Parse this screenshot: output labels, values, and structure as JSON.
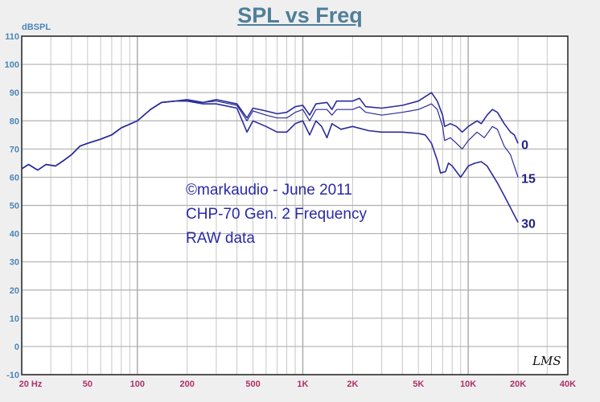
{
  "chart_data": {
    "type": "line",
    "title": "SPL vs Freq",
    "ylabel": "dBSPL",
    "xscale": "log",
    "xlim": [
      20,
      40000
    ],
    "ylim": [
      -10,
      110
    ],
    "grid": true,
    "yticks": [
      110,
      100,
      90,
      80,
      70,
      60,
      50,
      40,
      30,
      20,
      10,
      0,
      -10
    ],
    "xticks": [
      {
        "v": 20,
        "label": "20 Hz"
      },
      {
        "v": 50,
        "label": "50"
      },
      {
        "v": 100,
        "label": "100"
      },
      {
        "v": 200,
        "label": "200"
      },
      {
        "v": 500,
        "label": "500"
      },
      {
        "v": 1000,
        "label": "1K"
      },
      {
        "v": 2000,
        "label": "2K"
      },
      {
        "v": 5000,
        "label": "5K"
      },
      {
        "v": 10000,
        "label": "10K"
      },
      {
        "v": 20000,
        "label": "20K"
      },
      {
        "v": 40000,
        "label": "40K"
      }
    ],
    "series_color": "#2b2b9a",
    "series": [
      {
        "label": "0",
        "x": [
          20,
          22,
          25,
          28,
          32,
          36,
          40,
          45,
          50,
          60,
          70,
          80,
          100,
          120,
          140,
          170,
          200,
          250,
          300,
          400,
          460,
          500,
          600,
          700,
          800,
          900,
          1000,
          1100,
          1200,
          1400,
          1500,
          1600,
          2000,
          2200,
          2400,
          3000,
          4000,
          5000,
          6000,
          6500,
          7000,
          7200,
          7800,
          8500,
          9200,
          10000,
          11300,
          12000,
          13000,
          14000,
          15000,
          16500,
          18000,
          19000,
          20000
        ],
        "y": [
          63,
          64.5,
          62.5,
          64.5,
          64,
          66,
          68,
          71,
          72,
          73.5,
          75,
          77.5,
          80,
          84,
          86.5,
          87,
          87.5,
          86.5,
          87.5,
          86,
          81,
          84.5,
          83.5,
          82.5,
          83,
          85,
          85.5,
          82,
          86,
          86.5,
          84,
          87,
          87,
          88,
          85,
          84.5,
          85.5,
          87,
          90,
          87,
          82,
          78,
          79,
          78,
          76,
          78,
          80,
          79,
          82,
          84,
          83,
          79,
          76,
          75,
          72
        ]
      },
      {
        "label": "15",
        "x": [
          20,
          22,
          25,
          28,
          32,
          36,
          40,
          45,
          50,
          60,
          70,
          80,
          100,
          120,
          140,
          170,
          200,
          250,
          300,
          400,
          460,
          500,
          600,
          700,
          800,
          900,
          1000,
          1100,
          1200,
          1400,
          1500,
          1600,
          2000,
          2200,
          2400,
          3000,
          4000,
          5000,
          6000,
          6500,
          7000,
          7200,
          7800,
          8500,
          9200,
          10000,
          11300,
          12500,
          14000,
          15000,
          16500,
          18000,
          20000
        ],
        "y": [
          63,
          64.5,
          62.5,
          64.5,
          64,
          66,
          68,
          71,
          72,
          73.5,
          75,
          77.5,
          80,
          84,
          86.5,
          87,
          87,
          86.5,
          87,
          85.5,
          80,
          83.5,
          82,
          81,
          81,
          83,
          84,
          80,
          84,
          84,
          82,
          84,
          84,
          85,
          83,
          82,
          83,
          84,
          86,
          84,
          78,
          73,
          74,
          72,
          70,
          73,
          76,
          74,
          78,
          77,
          71,
          68,
          60
        ]
      },
      {
        "label": "30",
        "x": [
          20,
          22,
          25,
          28,
          32,
          36,
          40,
          45,
          50,
          60,
          70,
          80,
          100,
          120,
          140,
          170,
          200,
          250,
          300,
          400,
          460,
          500,
          600,
          700,
          800,
          900,
          1000,
          1100,
          1200,
          1300,
          1400,
          1500,
          1700,
          2000,
          2500,
          3000,
          4000,
          5000,
          5500,
          6000,
          6500,
          6800,
          7300,
          7600,
          8000,
          9000,
          9500,
          10000,
          11000,
          12000,
          13000,
          15000,
          17000,
          20000
        ],
        "y": [
          63,
          64.5,
          62.5,
          64.5,
          64,
          66,
          68,
          71,
          72,
          73.5,
          75,
          77.5,
          80,
          84,
          86.5,
          87,
          87,
          86,
          86,
          84.5,
          76,
          80,
          78,
          76,
          76,
          79,
          80,
          75,
          80,
          78,
          74,
          79,
          77,
          78,
          76.5,
          76,
          76,
          75.5,
          75,
          72,
          66,
          61.5,
          62,
          65,
          64,
          60,
          62,
          64,
          65,
          65.5,
          64,
          58,
          52,
          44
        ]
      }
    ]
  },
  "annotation": [
    "©markaudio - June 2011",
    "CHP-70 Gen. 2 Frequency",
    "RAW data"
  ],
  "logo": "LMS"
}
